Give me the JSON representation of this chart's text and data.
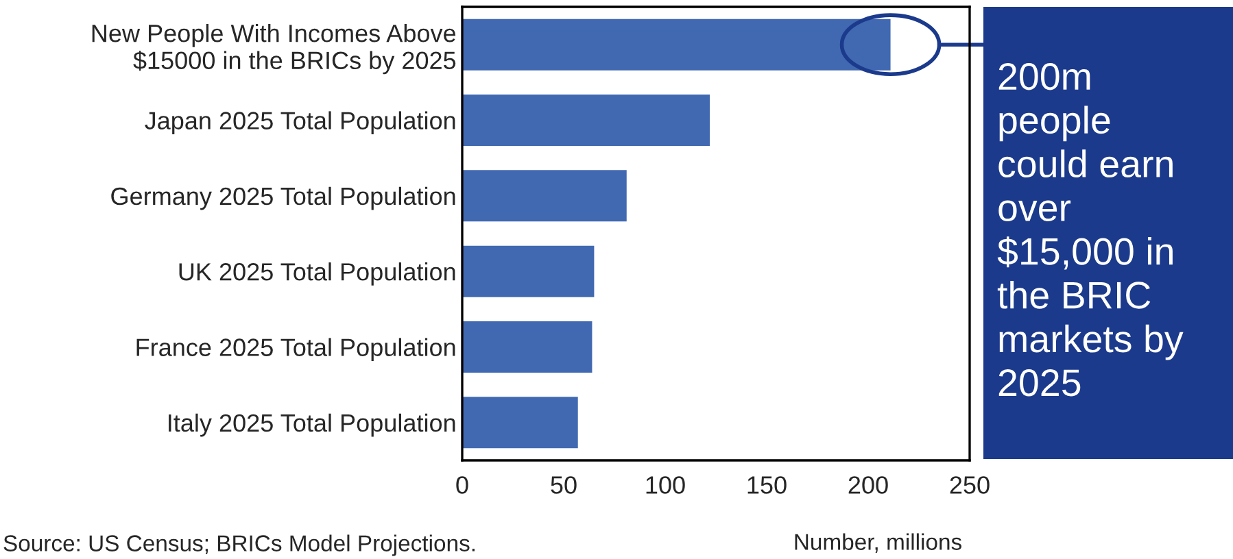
{
  "chart_data": {
    "type": "bar",
    "orientation": "horizontal",
    "categories": [
      "New People With Incomes Above\n$15000 in the BRICs by 2025",
      "Japan 2025 Total Population",
      "Germany 2025 Total Population",
      "UK 2025 Total Population",
      "France 2025 Total Population",
      "Italy 2025 Total Population"
    ],
    "values": [
      211,
      122,
      81,
      65,
      64,
      57
    ],
    "color": "#4169b2",
    "xlim": [
      0,
      250
    ],
    "xticks": [
      0,
      50,
      100,
      150,
      200,
      250
    ],
    "xlabel": "Number, millions",
    "grid": false,
    "annotations": [
      "Source: US Census; BRICs Model Projections.",
      "200m\npeople\ncould earn\nover\n$15,000 in\nthe BRIC\nmarkets by\n2025"
    ]
  }
}
